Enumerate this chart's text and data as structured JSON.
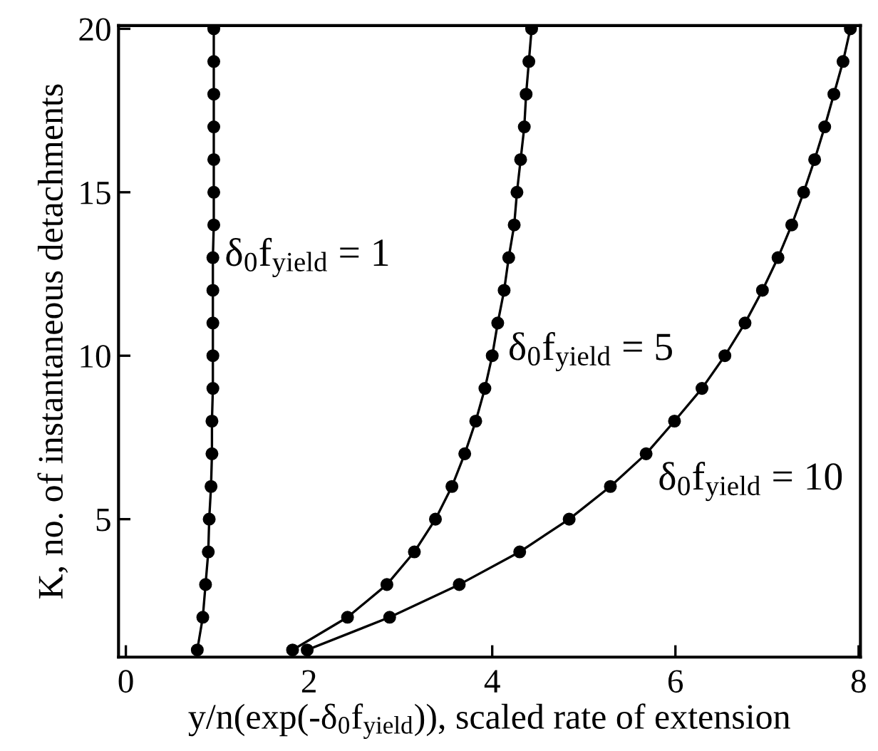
{
  "chart_data": {
    "type": "line",
    "xlabel": "y/n(exp(-δ$_{0}$f$_{yield}$)), scaled rate of extension",
    "ylabel": "K, no. of instantaneous detachments",
    "xlim": [
      -0.08,
      8.02
    ],
    "xticks": [
      0,
      2,
      4,
      6,
      8
    ],
    "ylim": [
      0.78,
      20.1
    ],
    "yticks": [
      5,
      10,
      15,
      20
    ],
    "grid": false,
    "legend": false,
    "marker": "circle",
    "line_style": "solid",
    "series": [
      {
        "color": "#000000",
        "x": [
          0.78,
          0.84,
          0.87,
          0.9,
          0.91,
          0.93,
          0.94,
          0.94,
          0.95,
          0.95,
          0.95,
          0.95,
          0.95,
          0.96,
          0.96,
          0.96,
          0.96,
          0.96,
          0.96,
          0.96
        ],
        "values": [
          1,
          2,
          3,
          4,
          5,
          6,
          7,
          8,
          9,
          10,
          11,
          12,
          13,
          14,
          15,
          16,
          17,
          18,
          19,
          20
        ]
      },
      {
        "color": "#000000",
        "x": [
          1.82,
          2.42,
          2.85,
          3.15,
          3.38,
          3.56,
          3.7,
          3.82,
          3.92,
          4.0,
          4.06,
          4.13,
          4.18,
          4.24,
          4.27,
          4.31,
          4.35,
          4.37,
          4.4,
          4.43
        ],
        "values": [
          1,
          2,
          3,
          4,
          5,
          6,
          7,
          8,
          9,
          10,
          11,
          12,
          13,
          14,
          15,
          16,
          17,
          18,
          19,
          20
        ]
      },
      {
        "color": "#000000",
        "x": [
          1.98,
          2.88,
          3.64,
          4.3,
          4.84,
          5.29,
          5.68,
          5.99,
          6.29,
          6.54,
          6.76,
          6.95,
          7.12,
          7.27,
          7.4,
          7.52,
          7.63,
          7.73,
          7.83,
          7.91
        ],
        "values": [
          1,
          2,
          3,
          4,
          5,
          6,
          7,
          8,
          9,
          10,
          11,
          12,
          13,
          14,
          15,
          16,
          17,
          18,
          19,
          20
        ]
      }
    ],
    "annotations": [
      "δ$_{0}$f$_{yield}$ = 1",
      "δ$_{0}$f$_{yield}$ = 5",
      "δ$_{0}$f$_{yield}$ = 10"
    ]
  }
}
